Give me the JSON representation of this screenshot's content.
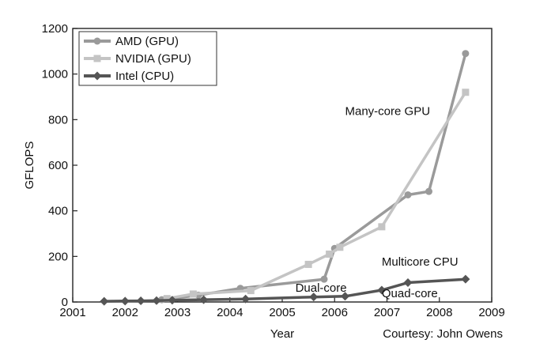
{
  "chart_data": {
    "type": "line",
    "title": "",
    "xlabel": "Year",
    "ylabel": "GFLOPS",
    "xlim": [
      2001,
      2009
    ],
    "ylim": [
      0,
      1200
    ],
    "x_ticks": [
      "2001",
      "2002",
      "2003",
      "2004",
      "2005",
      "2006",
      "2007",
      "2008",
      "2009"
    ],
    "y_ticks": [
      "0",
      "200",
      "400",
      "600",
      "800",
      "1000",
      "1200"
    ],
    "grid": false,
    "legend_position": "top-left",
    "series": [
      {
        "name": "AMD (GPU)",
        "color": "#9a9a9a",
        "marker": "circle",
        "points": [
          {
            "x": 2002.7,
            "y": 10
          },
          {
            "x": 2003.4,
            "y": 30
          },
          {
            "x": 2004.2,
            "y": 60
          },
          {
            "x": 2005.8,
            "y": 100
          },
          {
            "x": 2006.0,
            "y": 235
          },
          {
            "x": 2007.4,
            "y": 470
          },
          {
            "x": 2007.8,
            "y": 485
          },
          {
            "x": 2008.5,
            "y": 1090
          }
        ]
      },
      {
        "name": "NVIDIA (GPU)",
        "color": "#c4c4c4",
        "marker": "square",
        "points": [
          {
            "x": 2002.8,
            "y": 15
          },
          {
            "x": 2003.3,
            "y": 35
          },
          {
            "x": 2004.4,
            "y": 50
          },
          {
            "x": 2005.5,
            "y": 165
          },
          {
            "x": 2005.9,
            "y": 210
          },
          {
            "x": 2006.1,
            "y": 240
          },
          {
            "x": 2006.9,
            "y": 330
          },
          {
            "x": 2008.5,
            "y": 920
          }
        ]
      },
      {
        "name": "Intel (CPU)",
        "color": "#555555",
        "marker": "diamond",
        "points": [
          {
            "x": 2001.6,
            "y": 3
          },
          {
            "x": 2002.0,
            "y": 4
          },
          {
            "x": 2002.3,
            "y": 5
          },
          {
            "x": 2002.6,
            "y": 6
          },
          {
            "x": 2002.9,
            "y": 8
          },
          {
            "x": 2003.5,
            "y": 10
          },
          {
            "x": 2004.3,
            "y": 13
          },
          {
            "x": 2005.6,
            "y": 22
          },
          {
            "x": 2006.2,
            "y": 25
          },
          {
            "x": 2006.9,
            "y": 52
          },
          {
            "x": 2007.4,
            "y": 85
          },
          {
            "x": 2008.5,
            "y": 100
          }
        ]
      }
    ],
    "annotations": [
      {
        "text": "Many-core GPU",
        "x": 2006.2,
        "y": 820
      },
      {
        "text": "Multicore CPU",
        "x": 2006.9,
        "y": 160
      },
      {
        "text": "Dual-core",
        "x": 2005.25,
        "y": 45
      },
      {
        "text": "Quad-core",
        "x": 2006.9,
        "y": 20
      }
    ],
    "credit": "Courtesy: John Owens"
  }
}
